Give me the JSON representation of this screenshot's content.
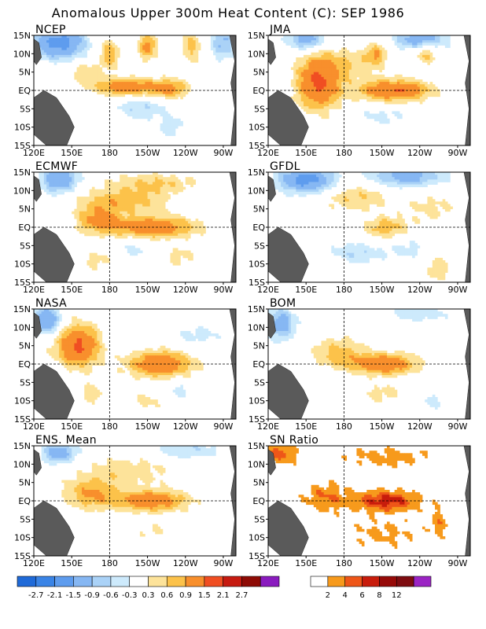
{
  "title": "Anomalous Upper 300m Heat Content (C): SEP 1986",
  "x_ticks": [
    "120E",
    "150E",
    "180",
    "150W",
    "120W",
    "90W"
  ],
  "y_ticks": [
    "15N",
    "10N",
    "5N",
    "EQ",
    "5S",
    "10S",
    "15S"
  ],
  "colors": {
    "land": "#5a5a5a",
    "neg": [
      "#1f6ad8",
      "#3a84e6",
      "#5e9cee",
      "#86b7f3",
      "#aad2f7",
      "#cdeafc"
    ],
    "pos": [
      "#ffffff",
      "#fde39a",
      "#fcc24a",
      "#f88f2c",
      "#f04e22",
      "#c61a10",
      "#8e0b05",
      "#8a1bbf"
    ],
    "sn": [
      "#ffffff",
      "#f79a1c",
      "#ee5618",
      "#c81c0c",
      "#960a08",
      "#7e0c10",
      "#9b24c4"
    ]
  },
  "chart_data": [
    {
      "type": "heatmap",
      "name": "NCEP",
      "region": {
        "lon": [
          120,
          280
        ],
        "lat": [
          -15,
          15
        ]
      },
      "features": [
        {
          "lon": 193,
          "lat": 1,
          "a": 1.3,
          "sx": 18,
          "sy": 1.6
        },
        {
          "lon": 228,
          "lat": 0.5,
          "a": 1.0,
          "sx": 10,
          "sy": 1.8
        },
        {
          "lon": 160,
          "lat": 5,
          "a": 0.5,
          "sx": 10,
          "sy": 2
        },
        {
          "lon": 180,
          "lat": 10,
          "a": 0.8,
          "sx": 6,
          "sy": 3
        },
        {
          "lon": 210,
          "lat": 12,
          "a": 1.1,
          "sx": 5,
          "sy": 2.5
        },
        {
          "lon": 245,
          "lat": 12,
          "a": 0.7,
          "sx": 6,
          "sy": 3
        },
        {
          "lon": 140,
          "lat": 13,
          "a": -1.8,
          "sx": 14,
          "sy": 3
        },
        {
          "lon": 270,
          "lat": 13,
          "a": -1.0,
          "sx": 7,
          "sy": 3
        },
        {
          "lon": 205,
          "lat": -5,
          "a": -0.6,
          "sx": 15,
          "sy": 2
        },
        {
          "lon": 228,
          "lat": -10,
          "a": -0.5,
          "sx": 8,
          "sy": 2
        }
      ]
    },
    {
      "type": "heatmap",
      "name": "JMA",
      "region": {
        "lon": [
          120,
          280
        ],
        "lat": [
          -15,
          15
        ]
      },
      "features": [
        {
          "lon": 160,
          "lat": 2,
          "a": 1.6,
          "sx": 12,
          "sy": 5
        },
        {
          "lon": 220,
          "lat": 0,
          "a": 1.5,
          "sx": 20,
          "sy": 2
        },
        {
          "lon": 185,
          "lat": 7,
          "a": 0.5,
          "sx": 20,
          "sy": 3
        },
        {
          "lon": 205,
          "lat": 10,
          "a": 0.8,
          "sx": 6,
          "sy": 2
        },
        {
          "lon": 245,
          "lat": 10,
          "a": 0.7,
          "sx": 6,
          "sy": 2
        },
        {
          "lon": 150,
          "lat": 14,
          "a": -1.2,
          "sx": 10,
          "sy": 2
        },
        {
          "lon": 240,
          "lat": 14,
          "a": -1.2,
          "sx": 15,
          "sy": 2
        },
        {
          "lon": 210,
          "lat": -7,
          "a": -0.4,
          "sx": 15,
          "sy": 2
        }
      ]
    },
    {
      "type": "heatmap",
      "name": "ECMWF",
      "region": {
        "lon": [
          120,
          280
        ],
        "lat": [
          -15,
          15
        ]
      },
      "features": [
        {
          "lon": 215,
          "lat": 0,
          "a": 1.3,
          "sx": 25,
          "sy": 2
        },
        {
          "lon": 170,
          "lat": 2,
          "a": 0.9,
          "sx": 12,
          "sy": 2.5
        },
        {
          "lon": 190,
          "lat": 7,
          "a": 0.8,
          "sx": 25,
          "sy": 2.5
        },
        {
          "lon": 215,
          "lat": 12,
          "a": 0.6,
          "sx": 25,
          "sy": 2
        },
        {
          "lon": 140,
          "lat": 13,
          "a": -1.5,
          "sx": 10,
          "sy": 2.5
        },
        {
          "lon": 170,
          "lat": -9,
          "a": 0.4,
          "sx": 10,
          "sy": 2
        },
        {
          "lon": 235,
          "lat": -8,
          "a": 0.4,
          "sx": 10,
          "sy": 2
        },
        {
          "lon": 200,
          "lat": -6,
          "a": -0.4,
          "sx": 10,
          "sy": 2
        }
      ]
    },
    {
      "type": "heatmap",
      "name": "GFDL",
      "region": {
        "lon": [
          120,
          280
        ],
        "lat": [
          -15,
          15
        ]
      },
      "features": [
        {
          "lon": 213,
          "lat": 0,
          "a": 0.8,
          "sx": 12,
          "sy": 2
        },
        {
          "lon": 190,
          "lat": 8,
          "a": 0.6,
          "sx": 20,
          "sy": 2.5
        },
        {
          "lon": 250,
          "lat": 5,
          "a": 0.4,
          "sx": 15,
          "sy": 3
        },
        {
          "lon": 150,
          "lat": 13,
          "a": -1.8,
          "sx": 15,
          "sy": 2.5
        },
        {
          "lon": 230,
          "lat": 14,
          "a": -1.2,
          "sx": 20,
          "sy": 2
        },
        {
          "lon": 190,
          "lat": -7,
          "a": -0.6,
          "sx": 15,
          "sy": 2
        },
        {
          "lon": 230,
          "lat": -6,
          "a": -0.4,
          "sx": 12,
          "sy": 2
        },
        {
          "lon": 255,
          "lat": -11,
          "a": 0.5,
          "sx": 7,
          "sy": 3
        }
      ]
    },
    {
      "type": "heatmap",
      "name": "NASA",
      "region": {
        "lon": [
          120,
          280
        ],
        "lat": [
          -15,
          15
        ]
      },
      "features": [
        {
          "lon": 155,
          "lat": 5,
          "a": 1.6,
          "sx": 12,
          "sy": 4
        },
        {
          "lon": 220,
          "lat": 0,
          "a": 1.4,
          "sx": 18,
          "sy": 2.5
        },
        {
          "lon": 130,
          "lat": 12,
          "a": -1.5,
          "sx": 8,
          "sy": 2.5
        },
        {
          "lon": 250,
          "lat": 8,
          "a": -0.4,
          "sx": 15,
          "sy": 2
        },
        {
          "lon": 165,
          "lat": -8,
          "a": 0.5,
          "sx": 8,
          "sy": 2
        },
        {
          "lon": 210,
          "lat": -10,
          "a": 0.4,
          "sx": 10,
          "sy": 2
        },
        {
          "lon": 235,
          "lat": -7,
          "a": -0.4,
          "sx": 8,
          "sy": 2
        }
      ]
    },
    {
      "type": "heatmap",
      "name": "BOM",
      "region": {
        "lon": [
          120,
          280
        ],
        "lat": [
          -15,
          15
        ]
      },
      "features": [
        {
          "lon": 212,
          "lat": 0,
          "a": 1.4,
          "sx": 18,
          "sy": 2
        },
        {
          "lon": 175,
          "lat": 3,
          "a": 0.7,
          "sx": 15,
          "sy": 3
        },
        {
          "lon": 130,
          "lat": 11,
          "a": -1.2,
          "sx": 8,
          "sy": 3
        },
        {
          "lon": 240,
          "lat": 14,
          "a": -0.5,
          "sx": 20,
          "sy": 2
        },
        {
          "lon": 210,
          "lat": -8,
          "a": 0.4,
          "sx": 15,
          "sy": 2
        },
        {
          "lon": 250,
          "lat": -10,
          "a": -0.4,
          "sx": 8,
          "sy": 2
        }
      ]
    },
    {
      "type": "heatmap",
      "name": "ENS. Mean",
      "region": {
        "lon": [
          120,
          280
        ],
        "lat": [
          -15,
          15
        ]
      },
      "features": [
        {
          "lon": 213,
          "lat": 0,
          "a": 1.3,
          "sx": 20,
          "sy": 2
        },
        {
          "lon": 165,
          "lat": 2,
          "a": 0.9,
          "sx": 15,
          "sy": 3
        },
        {
          "lon": 195,
          "lat": 8,
          "a": 0.5,
          "sx": 25,
          "sy": 3
        },
        {
          "lon": 140,
          "lat": 13,
          "a": -1.2,
          "sx": 10,
          "sy": 2
        },
        {
          "lon": 240,
          "lat": 14,
          "a": -0.6,
          "sx": 20,
          "sy": 2
        },
        {
          "lon": 215,
          "lat": -8,
          "a": 0.3,
          "sx": 15,
          "sy": 2
        }
      ]
    },
    {
      "type": "heatmap",
      "name": "SN Ratio",
      "region": {
        "lon": [
          120,
          280
        ],
        "lat": [
          -15,
          15
        ]
      },
      "features": [
        {
          "lon": 213,
          "lat": 0,
          "a": 7,
          "sx": 18,
          "sy": 2
        },
        {
          "lon": 165,
          "lat": 1,
          "a": 4,
          "sx": 12,
          "sy": 3
        },
        {
          "lon": 130,
          "lat": 13,
          "a": 5,
          "sx": 10,
          "sy": 2
        },
        {
          "lon": 215,
          "lat": 12,
          "a": 3,
          "sx": 25,
          "sy": 2
        },
        {
          "lon": 210,
          "lat": -9,
          "a": 2.5,
          "sx": 20,
          "sy": 3
        },
        {
          "lon": 255,
          "lat": -6,
          "a": 3,
          "sx": 6,
          "sy": 3
        }
      ]
    }
  ],
  "colorbars": [
    {
      "name": "anomaly-colorbar",
      "colors": [
        "#1f6ad8",
        "#3a84e6",
        "#5e9cee",
        "#86b7f3",
        "#aad2f7",
        "#cdeafc",
        "#ffffff",
        "#fde39a",
        "#fcc24a",
        "#f88f2c",
        "#f04e22",
        "#c61a10",
        "#8e0b05",
        "#8a1bbf"
      ],
      "labels": [
        "-2.7",
        "-2.1",
        "-1.5",
        "-0.9",
        "-0.6",
        "-0.3",
        "0.3",
        "0.6",
        "0.9",
        "1.5",
        "2.1",
        "2.7"
      ]
    },
    {
      "name": "sn-colorbar",
      "colors": [
        "#ffffff",
        "#f79a1c",
        "#ee5618",
        "#c81c0c",
        "#960a08",
        "#7e0c10",
        "#9b24c4"
      ],
      "labels": [
        "2",
        "4",
        "6",
        "8",
        "12"
      ]
    }
  ]
}
